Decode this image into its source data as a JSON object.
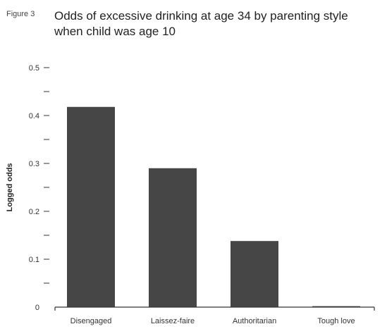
{
  "figure_label": "Figure 3",
  "chart_data": {
    "type": "bar",
    "title": "Odds of excessive drinking at age 34 by parenting style when child was age 10",
    "xlabel": "",
    "ylabel": "Logged odds",
    "categories": [
      "Disengaged",
      "Laissez-faire",
      "Authoritarian",
      "Tough love"
    ],
    "values": [
      0.418,
      0.29,
      0.138,
      0.002
    ],
    "ylim": [
      0,
      0.5
    ],
    "yticks": [
      {
        "value": 0.5,
        "label": "0.5"
      },
      {
        "value": 0.45,
        "label": ""
      },
      {
        "value": 0.4,
        "label": "0.4"
      },
      {
        "value": 0.35,
        "label": ""
      },
      {
        "value": 0.3,
        "label": "0.3"
      },
      {
        "value": 0.25,
        "label": ""
      },
      {
        "value": 0.2,
        "label": "0.2"
      },
      {
        "value": 0.15,
        "label": ""
      },
      {
        "value": 0.1,
        "label": "0.1"
      },
      {
        "value": 0.05,
        "label": ""
      },
      {
        "value": 0,
        "label": "0"
      }
    ],
    "bar_color": "#464646",
    "grid": false,
    "legend": "none"
  }
}
